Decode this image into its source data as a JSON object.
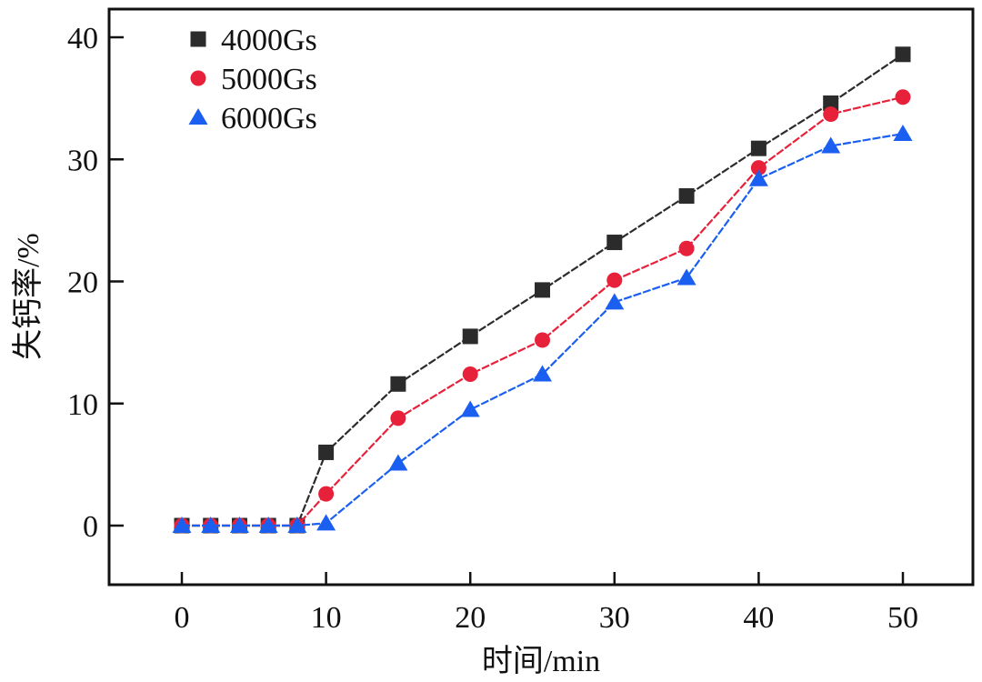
{
  "chart_data": {
    "type": "line",
    "title": "",
    "xlabel": "时间/min",
    "ylabel": "失钙率/%",
    "xlim": [
      -5,
      55
    ],
    "ylim": [
      -5,
      42.5
    ],
    "xticks": [
      0,
      10,
      20,
      30,
      40,
      50
    ],
    "yticks": [
      0,
      10,
      20,
      30,
      40
    ],
    "grid": false,
    "legend_position": "top-left",
    "x": [
      0,
      2,
      4,
      6,
      8,
      10,
      15,
      20,
      25,
      30,
      35,
      40,
      45,
      50
    ],
    "series": [
      {
        "name": "4000Gs",
        "marker": "square",
        "color": "#2b2b2b",
        "values": [
          0,
          0,
          0,
          0,
          0,
          6.0,
          11.6,
          15.5,
          19.3,
          23.2,
          27.0,
          30.9,
          34.6,
          38.6
        ]
      },
      {
        "name": "5000Gs",
        "marker": "circle",
        "color": "#e8213a",
        "values": [
          0,
          0,
          0,
          0,
          0,
          2.6,
          8.8,
          12.4,
          15.2,
          20.1,
          22.7,
          29.3,
          33.7,
          35.1
        ]
      },
      {
        "name": "6000Gs",
        "marker": "triangle",
        "color": "#1a5ff0",
        "values": [
          0,
          0,
          0,
          0,
          0,
          0.2,
          5.1,
          9.5,
          12.4,
          18.3,
          20.3,
          28.4,
          31.1,
          32.1
        ]
      }
    ]
  }
}
